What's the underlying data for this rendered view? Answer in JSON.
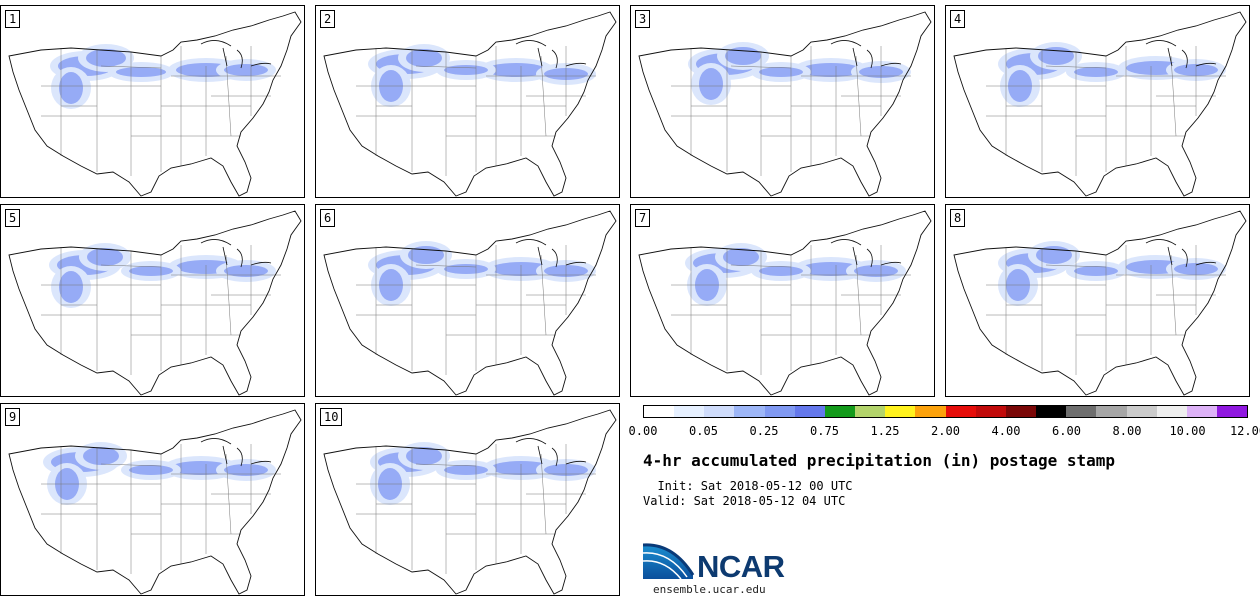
{
  "stamps": [
    {
      "label": "1"
    },
    {
      "label": "2"
    },
    {
      "label": "3"
    },
    {
      "label": "4"
    },
    {
      "label": "5"
    },
    {
      "label": "6"
    },
    {
      "label": "7"
    },
    {
      "label": "8"
    },
    {
      "label": "9"
    },
    {
      "label": "10"
    }
  ],
  "colorbar": {
    "colors": [
      "#ffffff",
      "#e6f0ff",
      "#cfdcfb",
      "#9db6f7",
      "#8099f2",
      "#6478ec",
      "#139a1b",
      "#b3d46b",
      "#fff21e",
      "#fca20c",
      "#e60d0a",
      "#c10a0a",
      "#7a0707",
      "#000000",
      "#6e6e6e",
      "#a6a6a6",
      "#cbcbcb",
      "#eeeeee",
      "#ddb2f7",
      "#9018e0"
    ],
    "ticks": [
      "0.00",
      "0.05",
      "0.25",
      "0.75",
      "1.25",
      "2.00",
      "4.00",
      "6.00",
      "8.00",
      "10.00",
      "12.00"
    ]
  },
  "title": "4-hr accumulated precipitation (in) postage stamp",
  "init": "  Init: Sat 2018-05-12 00 UTC",
  "valid": "Valid: Sat 2018-05-12 04 UTC",
  "logo": {
    "name": "NCAR",
    "url": "ensemble.ucar.edu"
  }
}
